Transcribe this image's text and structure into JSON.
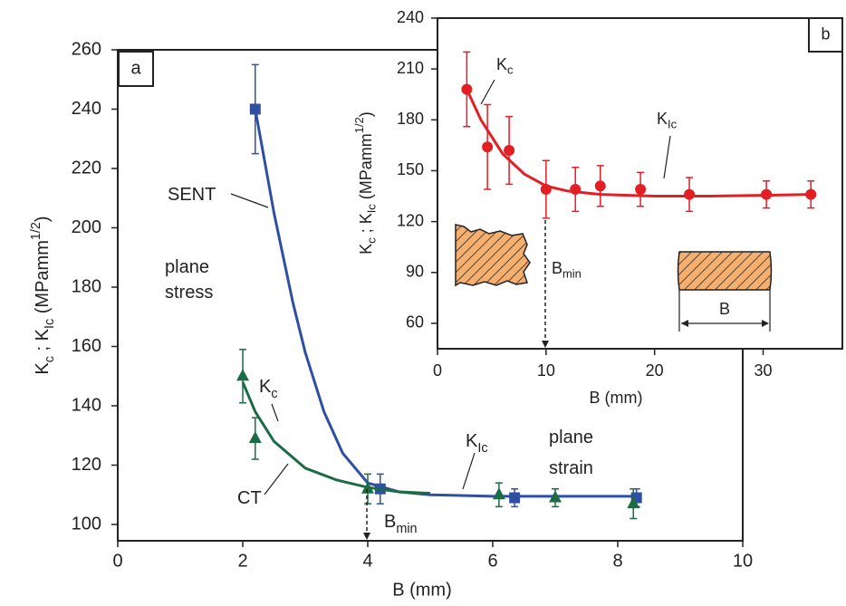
{
  "chart_data": [
    {
      "type": "scatter",
      "panel": "a",
      "xlabel": "B (mm)",
      "ylabel": [
        {
          "text": "K"
        },
        {
          "sub": "c"
        },
        {
          "text": " ; K"
        },
        {
          "sub": "Ic"
        },
        {
          "text": " (MPamm"
        },
        {
          "sup": "1/2"
        },
        {
          "text": ")"
        }
      ],
      "xlim": [
        0,
        10
      ],
      "xticks": [
        0,
        2,
        4,
        6,
        8,
        10
      ],
      "ylim": [
        94.5,
        260
      ],
      "yticks": [
        100,
        120,
        140,
        160,
        180,
        200,
        220,
        240,
        260
      ],
      "series": [
        {
          "color": "#2f4fa3",
          "marker": "square",
          "x": [
            2.2,
            4.2,
            6.35,
            8.3
          ],
          "values": [
            240,
            112,
            109,
            109
          ],
          "errors": [
            15,
            5,
            3,
            3
          ],
          "fit_x": [
            2.2,
            2.5,
            2.8,
            3.0,
            3.3,
            3.6,
            4.0,
            4.5,
            5.0,
            6.0,
            7.0,
            8.3
          ],
          "fit_values": [
            240,
            205,
            175,
            158,
            138,
            124,
            114,
            111,
            110,
            109.5,
            109.5,
            109.5
          ]
        },
        {
          "color": "#1b6b44",
          "marker": "triangle",
          "x": [
            2.0,
            2.2,
            4.0,
            6.1,
            7.0,
            8.25
          ],
          "values": [
            150,
            129,
            112,
            110,
            109,
            107
          ],
          "errors": [
            9,
            7,
            5,
            4,
            3,
            5
          ],
          "fit_x": [
            2.0,
            2.2,
            2.5,
            3.0,
            3.5,
            4.0,
            4.5,
            5.0
          ],
          "fit_values": [
            148,
            138,
            128,
            119,
            115,
            112.5,
            111,
            110.5
          ]
        }
      ],
      "annotations": [
        {
          "text": "SENT"
        },
        {
          "text": "plane"
        },
        {
          "text": "stress"
        },
        {
          "text": "K",
          "sub": "c"
        },
        {
          "text": "CT"
        },
        {
          "text": "K",
          "sub": "Ic"
        },
        {
          "text": "plane"
        },
        {
          "text": "strain"
        },
        {
          "text": "B",
          "sub": "min"
        }
      ]
    },
    {
      "type": "scatter",
      "panel": "b",
      "xlabel": "B (mm)",
      "ylabel": [
        {
          "text": "K"
        },
        {
          "sub": "c"
        },
        {
          "text": " ; K"
        },
        {
          "sub": "Ic"
        },
        {
          "text": " (MPamm"
        },
        {
          "sup": "1/2"
        },
        {
          "text": ")"
        }
      ],
      "xlim": [
        0,
        37.3
      ],
      "xticks": [
        0,
        10,
        20,
        30
      ],
      "ylim": [
        45,
        240
      ],
      "yticks": [
        60,
        90,
        120,
        150,
        180,
        210,
        240
      ],
      "series": [
        {
          "color": "#e31e24",
          "marker": "circle",
          "x": [
            2.7,
            4.6,
            6.6,
            10,
            12.7,
            15,
            18.7,
            23.2,
            30.3,
            34.4
          ],
          "values": [
            198,
            164,
            162,
            139,
            139,
            141,
            139,
            136,
            136,
            136
          ],
          "errors": [
            22,
            25,
            20,
            17,
            13,
            12,
            10,
            10,
            8,
            8
          ],
          "fit_x": [
            2.7,
            4,
            6,
            8,
            10,
            12,
            15,
            20,
            25,
            30,
            34.4
          ],
          "fit_values": [
            198,
            180,
            160,
            148,
            141,
            138,
            136,
            135,
            135,
            135.5,
            136
          ]
        }
      ],
      "annotations": [
        {
          "text": "K",
          "sub": "c"
        },
        {
          "text": "K",
          "sub": "Ic"
        },
        {
          "text": "B",
          "sub": "min"
        },
        {
          "text": "B"
        }
      ]
    }
  ]
}
